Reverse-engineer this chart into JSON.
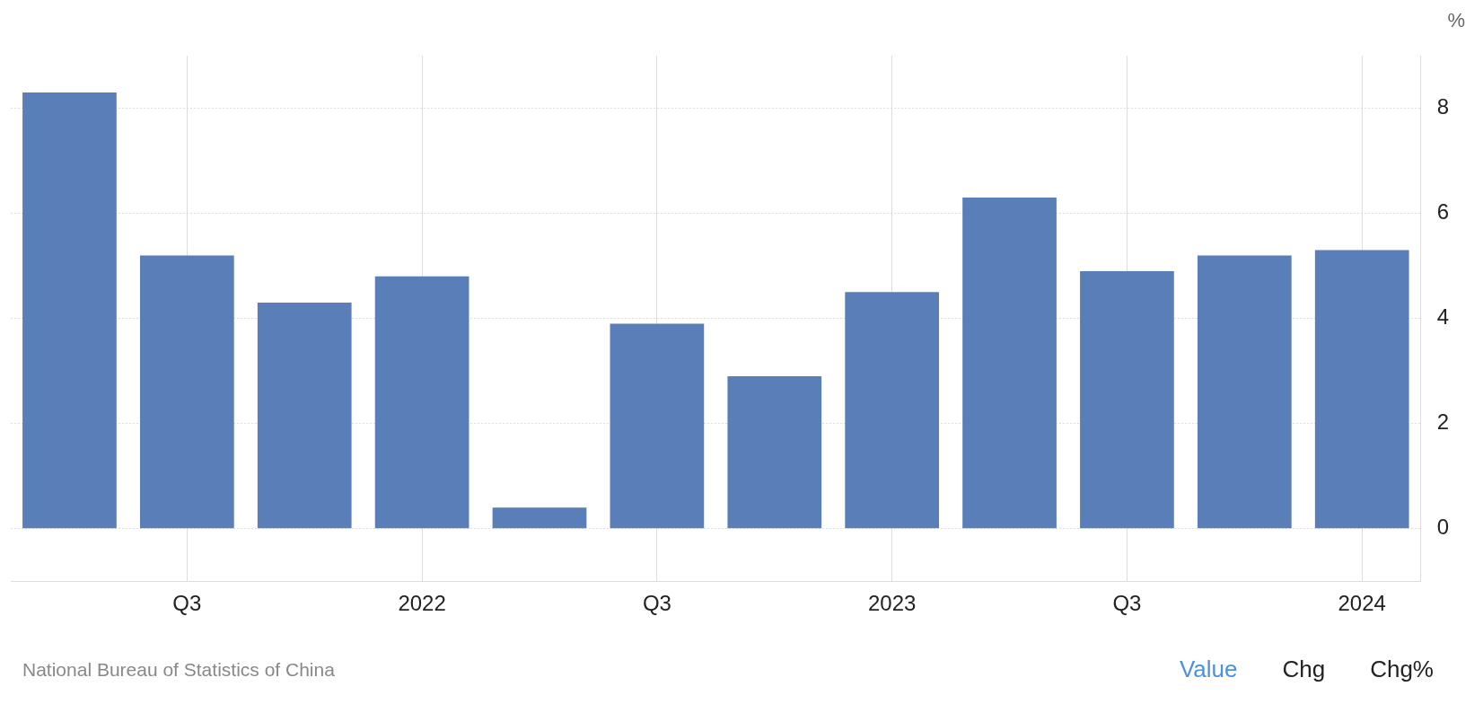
{
  "chart_data": {
    "type": "bar",
    "ylabel": "%",
    "categories": [
      null,
      "Q3",
      null,
      "2022",
      null,
      "Q3",
      null,
      "2023",
      null,
      "Q3",
      null,
      "2024"
    ],
    "values": [
      8.3,
      5.2,
      4.3,
      4.8,
      0.4,
      3.9,
      2.9,
      4.5,
      6.3,
      4.9,
      5.2,
      5.3
    ],
    "color": "#5a7fb8",
    "ylim": [
      -1,
      9
    ],
    "yticks": [
      0,
      2,
      4,
      6,
      8
    ],
    "grid": true,
    "legend": false,
    "annotations": [
      "National Bureau of Statistics of China",
      "Value",
      "Chg",
      "Chg%"
    ]
  }
}
